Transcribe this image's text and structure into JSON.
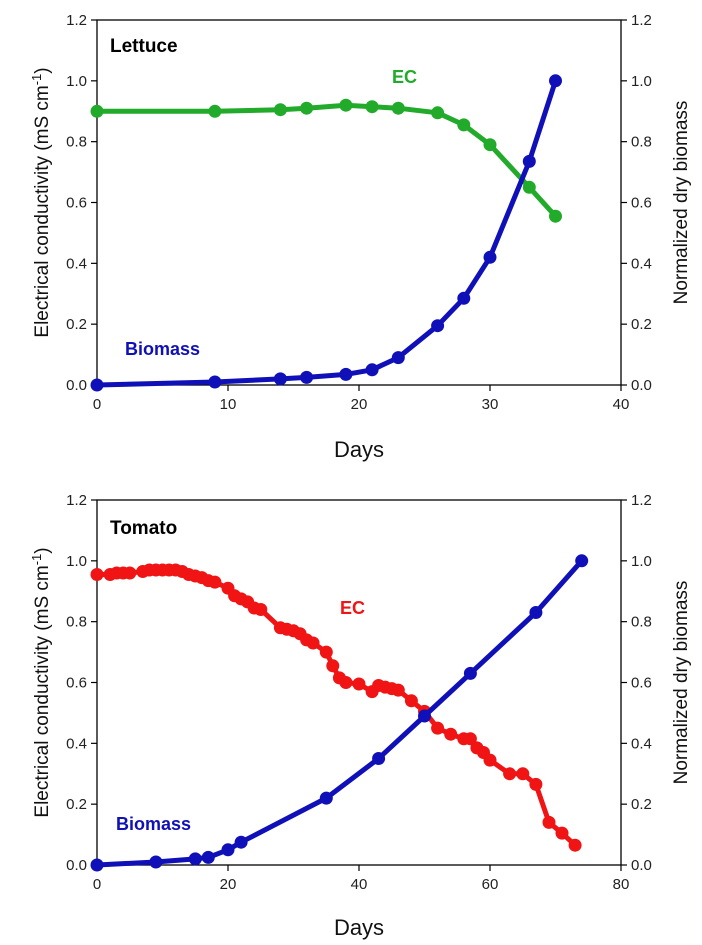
{
  "chart_data": [
    {
      "type": "line",
      "title": "Lettuce",
      "xlabel": "Days",
      "ylabel_left": "Electrical conductivity (mS cm",
      "ylabel_left_sup": "-1",
      "ylabel_right": "Normalized dry biomass",
      "xlim": [
        0,
        40
      ],
      "ylim": [
        0,
        1.2
      ],
      "x_ticks": [
        "0",
        "10",
        "20",
        "30",
        "40"
      ],
      "y_ticks": [
        "0.0",
        "0.2",
        "0.4",
        "0.6",
        "0.8",
        "1.0",
        "1.2"
      ],
      "grid": false,
      "series": [
        {
          "name": "EC",
          "color": "#22aa2b",
          "points": [
            [
              0,
              0.9
            ],
            [
              9,
              0.9
            ],
            [
              14,
              0.905
            ],
            [
              16,
              0.91
            ],
            [
              19,
              0.92
            ],
            [
              21,
              0.915
            ],
            [
              23,
              0.91
            ],
            [
              26,
              0.895
            ],
            [
              28,
              0.855
            ],
            [
              30,
              0.79
            ],
            [
              33,
              0.65
            ],
            [
              35,
              0.555
            ]
          ]
        },
        {
          "name": "Biomass",
          "color": "#1010b8",
          "points": [
            [
              0,
              0.0
            ],
            [
              9,
              0.01
            ],
            [
              14,
              0.02
            ],
            [
              16,
              0.025
            ],
            [
              19,
              0.035
            ],
            [
              21,
              0.05
            ],
            [
              23,
              0.09
            ],
            [
              26,
              0.195
            ],
            [
              28,
              0.285
            ],
            [
              30,
              0.42
            ],
            [
              33,
              0.735
            ],
            [
              35,
              1.0
            ]
          ]
        }
      ]
    },
    {
      "type": "line",
      "title": "Tomato",
      "xlabel": "Days",
      "ylabel_left": "Electrical conductivity (mS cm",
      "ylabel_left_sup": "-1",
      "ylabel_right": "Normalized dry biomass",
      "xlim": [
        0,
        80
      ],
      "ylim": [
        0,
        1.2
      ],
      "x_ticks": [
        "0",
        "20",
        "40",
        "60",
        "80"
      ],
      "y_ticks": [
        "0.0",
        "0.2",
        "0.4",
        "0.6",
        "0.8",
        "1.0",
        "1.2"
      ],
      "grid": false,
      "series": [
        {
          "name": "EC",
          "color": "#f01414",
          "points": [
            [
              0,
              0.955
            ],
            [
              2,
              0.955
            ],
            [
              3,
              0.96
            ],
            [
              4,
              0.96
            ],
            [
              5,
              0.96
            ],
            [
              7,
              0.965
            ],
            [
              8,
              0.97
            ],
            [
              9,
              0.97
            ],
            [
              10,
              0.97
            ],
            [
              11,
              0.97
            ],
            [
              12,
              0.97
            ],
            [
              13,
              0.965
            ],
            [
              14,
              0.955
            ],
            [
              15,
              0.95
            ],
            [
              16,
              0.945
            ],
            [
              17,
              0.935
            ],
            [
              18,
              0.93
            ],
            [
              20,
              0.91
            ],
            [
              21,
              0.885
            ],
            [
              22,
              0.875
            ],
            [
              23,
              0.865
            ],
            [
              24,
              0.845
            ],
            [
              25,
              0.84
            ],
            [
              28,
              0.78
            ],
            [
              29,
              0.775
            ],
            [
              30,
              0.77
            ],
            [
              31,
              0.76
            ],
            [
              32,
              0.74
            ],
            [
              33,
              0.73
            ],
            [
              35,
              0.7
            ],
            [
              36,
              0.655
            ],
            [
              37,
              0.615
            ],
            [
              38,
              0.6
            ],
            [
              40,
              0.595
            ],
            [
              42,
              0.57
            ],
            [
              43,
              0.59
            ],
            [
              44,
              0.585
            ],
            [
              45,
              0.58
            ],
            [
              46,
              0.575
            ],
            [
              48,
              0.54
            ],
            [
              50,
              0.505
            ],
            [
              52,
              0.45
            ],
            [
              54,
              0.43
            ],
            [
              56,
              0.415
            ],
            [
              57,
              0.415
            ],
            [
              58,
              0.385
            ],
            [
              59,
              0.37
            ],
            [
              60,
              0.345
            ],
            [
              63,
              0.3
            ],
            [
              65,
              0.3
            ],
            [
              67,
              0.265
            ],
            [
              69,
              0.14
            ],
            [
              71,
              0.105
            ],
            [
              73,
              0.065
            ]
          ]
        },
        {
          "name": "Biomass",
          "color": "#1010b8",
          "points": [
            [
              0,
              0.0
            ],
            [
              9,
              0.01
            ],
            [
              15,
              0.02
            ],
            [
              17,
              0.025
            ],
            [
              20,
              0.05
            ],
            [
              22,
              0.075
            ],
            [
              35,
              0.22
            ],
            [
              43,
              0.35
            ],
            [
              50,
              0.49
            ],
            [
              57,
              0.63
            ],
            [
              67,
              0.83
            ],
            [
              74,
              1.0
            ]
          ]
        }
      ]
    }
  ]
}
